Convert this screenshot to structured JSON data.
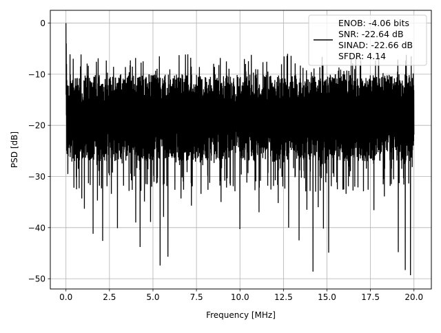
{
  "chart_data": {
    "type": "line",
    "title": "",
    "xlabel": "Frequency [MHz]",
    "ylabel": "PSD [dB]",
    "xlim": [
      -0.9,
      21.0
    ],
    "ylim": [
      -52.0,
      2.5
    ],
    "xticks": [
      0.0,
      2.5,
      5.0,
      7.5,
      10.0,
      12.5,
      15.0,
      17.5,
      20.0
    ],
    "xtick_labels": [
      "0.0",
      "2.5",
      "5.0",
      "7.5",
      "10.0",
      "12.5",
      "15.0",
      "17.5",
      "20.0"
    ],
    "yticks": [
      0,
      -10,
      -20,
      -30,
      -40,
      -50
    ],
    "ytick_labels": [
      "0",
      "−10",
      "−20",
      "−30",
      "−40",
      "−50"
    ],
    "grid": true,
    "legend_position": "top-right",
    "legend_lines": [
      "ENOB: -4.06 bits",
      "SNR: -22.64 dB",
      "SINAD: -22.66 dB",
      "SFDR: 4.14"
    ],
    "series": [
      {
        "color": "#000000",
        "noise_envelope": {
          "x_range": [
            0.0,
            20.0
          ],
          "typical_max_db": -10,
          "typical_min_db": -27,
          "peak_max_db": -6,
          "dc_peak": {
            "x": 0.0,
            "y": 0.0
          }
        },
        "deep_dips": [
          {
            "x": 0.45,
            "y": -32.2
          },
          {
            "x": 0.6,
            "y": -32.5
          },
          {
            "x": 0.75,
            "y": -32.3
          },
          {
            "x": 0.9,
            "y": -34.3
          },
          {
            "x": 1.05,
            "y": -36.3
          },
          {
            "x": 1.55,
            "y": -41.2
          },
          {
            "x": 1.8,
            "y": -34.7
          },
          {
            "x": 2.1,
            "y": -42.6
          },
          {
            "x": 2.6,
            "y": -33.4
          },
          {
            "x": 2.95,
            "y": -40.1
          },
          {
            "x": 3.3,
            "y": -31.8
          },
          {
            "x": 3.8,
            "y": -32.6
          },
          {
            "x": 4.0,
            "y": -39.0
          },
          {
            "x": 4.25,
            "y": -43.8
          },
          {
            "x": 4.5,
            "y": -34.9
          },
          {
            "x": 4.85,
            "y": -38.9
          },
          {
            "x": 5.4,
            "y": -47.4
          },
          {
            "x": 5.6,
            "y": -37.9
          },
          {
            "x": 5.85,
            "y": -45.7
          },
          {
            "x": 6.25,
            "y": -32.6
          },
          {
            "x": 6.6,
            "y": -34.3
          },
          {
            "x": 7.2,
            "y": -35.7
          },
          {
            "x": 7.75,
            "y": -33.4
          },
          {
            "x": 8.15,
            "y": -32.6
          },
          {
            "x": 8.9,
            "y": -35.0
          },
          {
            "x": 9.6,
            "y": -31.9
          },
          {
            "x": 10.0,
            "y": -40.3
          },
          {
            "x": 10.4,
            "y": -31.2
          },
          {
            "x": 11.1,
            "y": -37.0
          },
          {
            "x": 11.6,
            "y": -31.8
          },
          {
            "x": 12.2,
            "y": -35.2
          },
          {
            "x": 12.8,
            "y": -40.0
          },
          {
            "x": 13.4,
            "y": -42.5
          },
          {
            "x": 13.85,
            "y": -36.5
          },
          {
            "x": 14.2,
            "y": -48.6
          },
          {
            "x": 14.5,
            "y": -36.0
          },
          {
            "x": 14.8,
            "y": -40.2
          },
          {
            "x": 15.1,
            "y": -44.9
          },
          {
            "x": 15.6,
            "y": -32.5
          },
          {
            "x": 16.1,
            "y": -33.4
          },
          {
            "x": 16.6,
            "y": -32.0
          },
          {
            "x": 17.1,
            "y": -32.9
          },
          {
            "x": 17.7,
            "y": -36.6
          },
          {
            "x": 18.3,
            "y": -33.9
          },
          {
            "x": 18.7,
            "y": -31.5
          },
          {
            "x": 19.1,
            "y": -44.8
          },
          {
            "x": 19.5,
            "y": -48.3
          },
          {
            "x": 19.8,
            "y": -49.3
          }
        ]
      }
    ]
  }
}
